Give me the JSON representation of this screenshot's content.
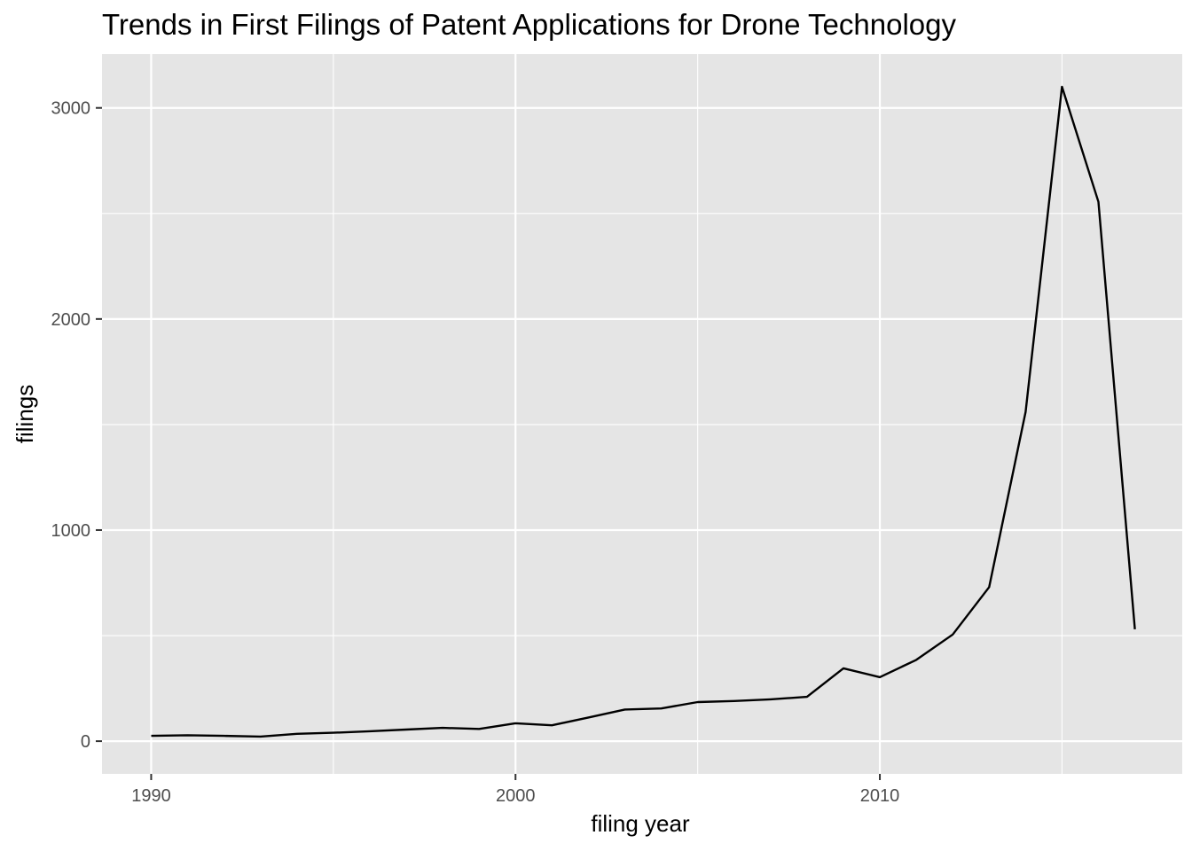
{
  "chart_data": {
    "type": "line",
    "title": "Trends in First Filings of Patent Applications for Drone Technology",
    "xlabel": "filing year",
    "ylabel": "filings",
    "xlim": [
      1988.65,
      2018.3
    ],
    "ylim": [
      -155,
      3255
    ],
    "x_ticks": [
      1990,
      2000,
      2010
    ],
    "x_minor": [
      1995,
      2005,
      2015
    ],
    "y_ticks": [
      0,
      1000,
      2000,
      3000
    ],
    "y_minor": [
      500,
      1500,
      2500
    ],
    "grid": true,
    "legend": "none",
    "colors": {
      "panel": "#e5e5e5",
      "grid": "#ffffff",
      "line": "#000000",
      "tick": "#333333"
    },
    "series": [
      {
        "x": [
          1990,
          1991,
          1992,
          1993,
          1994,
          1995,
          1996,
          1997,
          1998,
          1999,
          2000,
          2001,
          2002,
          2003,
          2004,
          2005,
          2006,
          2007,
          2008,
          2009,
          2010,
          2011,
          2012,
          2013,
          2014,
          2015,
          2016,
          2017
        ],
        "values": [
          25,
          28,
          25,
          22,
          35,
          40,
          47,
          55,
          63,
          58,
          85,
          75,
          112,
          150,
          155,
          185,
          190,
          198,
          210,
          345,
          303,
          385,
          505,
          730,
          1560,
          3100,
          2555,
          530
        ]
      }
    ]
  }
}
